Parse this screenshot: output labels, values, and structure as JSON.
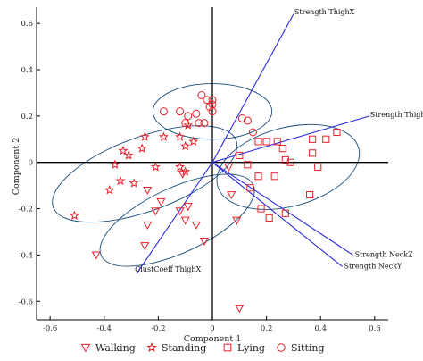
{
  "chart_data": {
    "type": "scatter",
    "xlabel": "Component 1",
    "ylabel": "Component 2",
    "xlim": [
      -0.65,
      0.65
    ],
    "ylim": [
      -0.68,
      0.67
    ],
    "xticks": [
      -0.6,
      -0.4,
      -0.2,
      0,
      0.2,
      0.4,
      0.6
    ],
    "yticks": [
      -0.6,
      -0.4,
      -0.2,
      0,
      0.2,
      0.4,
      0.6
    ],
    "xtick_labels": [
      "-0.6",
      "-0.4",
      "-0.2",
      "0",
      "0.2",
      "0.4",
      "0.6"
    ],
    "ytick_labels": [
      "-0.6",
      "-0.4",
      "-0.2",
      "0",
      "0.2",
      "0.4",
      "0.6"
    ],
    "grid": false,
    "legend_position": "bottom",
    "colors": {
      "points": "#e8202a",
      "vectors": "#2a2ae0",
      "ellipses": "#1a4d7a",
      "axes": "#000000"
    },
    "series": [
      {
        "name": "Walking",
        "marker": "triangle-down",
        "points": [
          [
            -0.24,
            -0.12
          ],
          [
            -0.19,
            -0.17
          ],
          [
            -0.21,
            -0.21
          ],
          [
            -0.12,
            -0.21
          ],
          [
            -0.09,
            -0.19
          ],
          [
            -0.1,
            -0.25
          ],
          [
            -0.06,
            -0.27
          ],
          [
            -0.03,
            -0.34
          ],
          [
            -0.24,
            -0.27
          ],
          [
            -0.25,
            -0.36
          ],
          [
            -0.43,
            -0.4
          ],
          [
            0.06,
            -0.02
          ],
          [
            0.07,
            -0.14
          ],
          [
            0.09,
            -0.25
          ],
          [
            0.1,
            -0.63
          ],
          [
            -0.11,
            -0.05
          ]
        ]
      },
      {
        "name": "Standing",
        "marker": "star",
        "points": [
          [
            -0.51,
            -0.23
          ],
          [
            -0.38,
            -0.12
          ],
          [
            -0.36,
            -0.01
          ],
          [
            -0.33,
            0.05
          ],
          [
            -0.31,
            0.03
          ],
          [
            -0.26,
            0.06
          ],
          [
            -0.34,
            -0.08
          ],
          [
            -0.29,
            -0.09
          ],
          [
            -0.21,
            -0.02
          ],
          [
            -0.18,
            0.11
          ],
          [
            -0.12,
            0.11
          ],
          [
            -0.1,
            0.07
          ],
          [
            -0.12,
            -0.02
          ],
          [
            -0.1,
            -0.04
          ],
          [
            -0.07,
            0.09
          ],
          [
            -0.09,
            0.16
          ],
          [
            -0.25,
            0.11
          ]
        ]
      },
      {
        "name": "Lying",
        "marker": "square",
        "points": [
          [
            0.1,
            0.03
          ],
          [
            0.13,
            -0.01
          ],
          [
            0.17,
            0.09
          ],
          [
            0.2,
            0.09
          ],
          [
            0.24,
            0.09
          ],
          [
            0.26,
            0.06
          ],
          [
            0.27,
            0.01
          ],
          [
            0.29,
            0.0
          ],
          [
            0.23,
            -0.06
          ],
          [
            0.17,
            -0.06
          ],
          [
            0.14,
            -0.11
          ],
          [
            0.18,
            -0.2
          ],
          [
            0.27,
            -0.22
          ],
          [
            0.37,
            0.1
          ],
          [
            0.37,
            0.04
          ],
          [
            0.39,
            -0.02
          ],
          [
            0.42,
            0.1
          ],
          [
            0.46,
            0.13
          ],
          [
            0.36,
            -0.14
          ],
          [
            0.21,
            -0.24
          ]
        ]
      },
      {
        "name": "Sitting",
        "marker": "circle",
        "points": [
          [
            -0.12,
            0.22
          ],
          [
            -0.09,
            0.2
          ],
          [
            -0.06,
            0.21
          ],
          [
            -0.01,
            0.24
          ],
          [
            0.0,
            0.25
          ],
          [
            0.0,
            0.22
          ],
          [
            -0.02,
            0.27
          ],
          [
            0.0,
            0.27
          ],
          [
            -0.05,
            0.17
          ],
          [
            -0.03,
            0.17
          ],
          [
            -0.1,
            0.17
          ],
          [
            -0.18,
            0.22
          ],
          [
            0.13,
            0.18
          ],
          [
            0.15,
            0.13
          ],
          [
            0.11,
            0.19
          ],
          [
            -0.04,
            0.29
          ]
        ]
      }
    ],
    "loading_vectors": [
      {
        "label": "Strength ThighX",
        "x": 0.3,
        "y": 0.64
      },
      {
        "label": "Strength ThighZ",
        "x": 0.58,
        "y": 0.2
      },
      {
        "label": "Strength NeckZ",
        "x": 0.52,
        "y": -0.4
      },
      {
        "label": "Strength NeckY",
        "x": 0.48,
        "y": -0.45
      },
      {
        "label": "ClustCoeff ThighX",
        "x": -0.28,
        "y": -0.48
      }
    ],
    "ellipses": [
      {
        "cx": 0.0,
        "cy": 0.22,
        "rx": 0.22,
        "ry": 0.12,
        "angle": 0
      },
      {
        "cx": -0.25,
        "cy": -0.05,
        "rx": 0.36,
        "ry": 0.16,
        "angle": 20
      },
      {
        "cx": -0.13,
        "cy": -0.25,
        "rx": 0.31,
        "ry": 0.14,
        "angle": 25
      },
      {
        "cx": 0.28,
        "cy": -0.02,
        "rx": 0.27,
        "ry": 0.17,
        "angle": 15
      }
    ]
  }
}
